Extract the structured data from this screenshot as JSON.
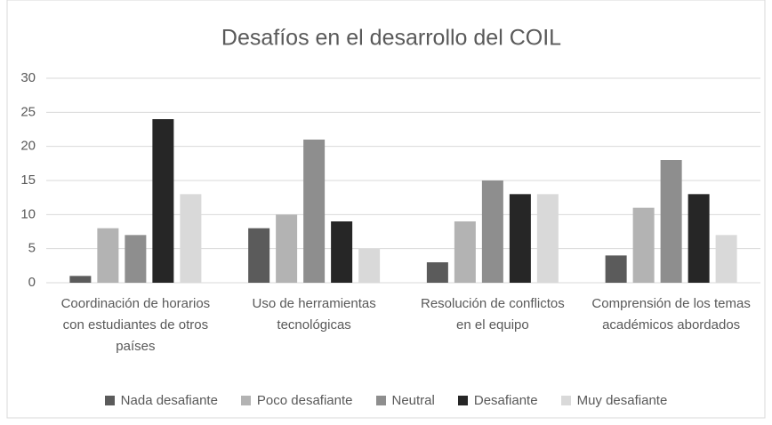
{
  "chart_data": {
    "type": "bar",
    "title": "Desafíos en el desarrollo del COIL",
    "categories": [
      "Coordinación de horarios con estudiantes de otros países",
      "Uso de herramientas tecnológicas",
      "Resolución de conflictos en el equipo",
      "Comprensión de los temas académicos abordados"
    ],
    "series": [
      {
        "name": "Nada desafiante",
        "color": "#5b5b5b",
        "values": [
          1,
          8,
          3,
          4
        ]
      },
      {
        "name": "Poco desafiante",
        "color": "#b3b3b3",
        "values": [
          8,
          10,
          9,
          11
        ]
      },
      {
        "name": "Neutral",
        "color": "#8e8e8e",
        "values": [
          7,
          21,
          15,
          18
        ]
      },
      {
        "name": "Desafiante",
        "color": "#262626",
        "values": [
          24,
          9,
          13,
          13
        ]
      },
      {
        "name": "Muy desafiante",
        "color": "#d9d9d9",
        "values": [
          13,
          5,
          13,
          7
        ]
      }
    ],
    "ylim": [
      0,
      30
    ],
    "yticks": [
      0,
      5,
      10,
      15,
      20,
      25,
      30
    ],
    "grid": true,
    "legend": "bottom"
  }
}
